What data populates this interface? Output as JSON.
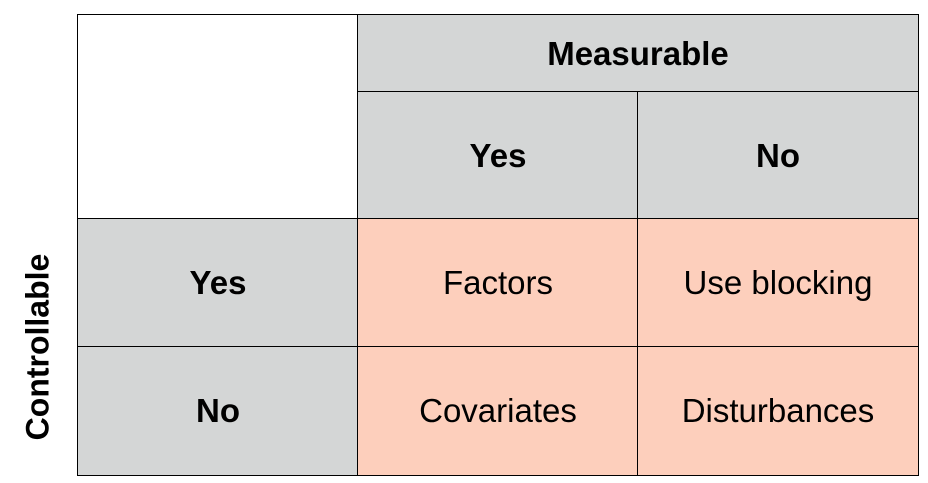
{
  "side_label": "Controllable",
  "header": {
    "top": "Measurable",
    "yes": "Yes",
    "no": "No"
  },
  "rows": [
    {
      "label": "Yes",
      "cells": [
        "Factors",
        "Use blocking"
      ]
    },
    {
      "label": "No",
      "cells": [
        "Covariates",
        "Disturbances"
      ]
    }
  ],
  "colors": {
    "header_fill": "#d4d6d6",
    "cell_fill": "#fdcfbc",
    "border": "#000000"
  }
}
